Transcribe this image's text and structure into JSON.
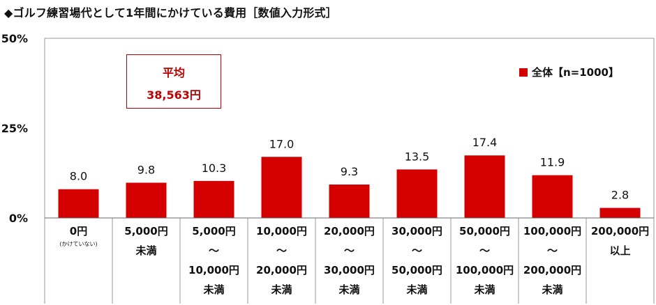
{
  "title": "◆ゴルフ練習場代として1年間にかけている費用［数値入力形式］",
  "average_box": {
    "label": "平均",
    "value": "38,563円"
  },
  "chart_data": {
    "type": "bar",
    "categories": [
      [
        "0円",
        "(かけていない)"
      ],
      [
        "5,000円",
        "未満"
      ],
      [
        "5,000円",
        "～",
        "10,000円",
        "未満"
      ],
      [
        "10,000円",
        "～",
        "20,000円",
        "未満"
      ],
      [
        "20,000円",
        "～",
        "30,000円",
        "未満"
      ],
      [
        "30,000円",
        "～",
        "50,000円",
        "未満"
      ],
      [
        "50,000円",
        "～",
        "100,000円",
        "未満"
      ],
      [
        "100,000円",
        "～",
        "200,000円",
        "未満"
      ],
      [
        "200,000円",
        "以上"
      ]
    ],
    "series": [
      {
        "name": "全体【n=1000】",
        "values": [
          8.0,
          9.8,
          10.3,
          17.0,
          9.3,
          13.5,
          17.4,
          11.9,
          2.8
        ],
        "color": "#d40000"
      }
    ],
    "value_labels": [
      "8.0",
      "9.8",
      "10.3",
      "17.0",
      "9.3",
      "13.5",
      "17.4",
      "11.9",
      "2.8"
    ],
    "yticks": [
      "0%",
      "25%",
      "50%"
    ],
    "ylim": [
      0,
      50
    ],
    "grid": false,
    "legend_position": "top-right"
  }
}
